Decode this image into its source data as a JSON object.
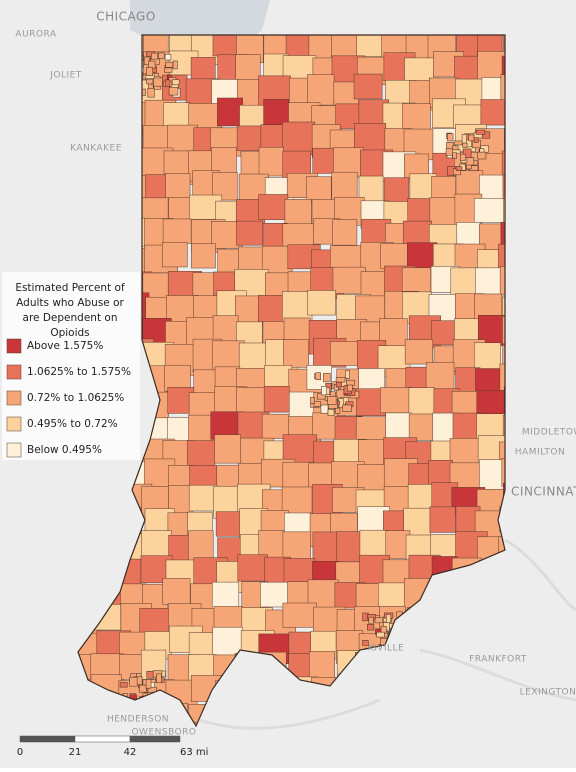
{
  "place_labels": [
    "CHICAGO",
    "AURORA",
    "JOLIET",
    "KANKAKEE",
    "MIDDLETOWN",
    "HAMILTON",
    "CINCINNATI",
    "FRANKFORT",
    "LEXINGTON",
    "ISVILLE",
    "HENDERSON",
    "OWENSBORO"
  ],
  "legend": {
    "title": "Estimated Percent of Adults who Abuse or are Dependent on Opioids",
    "items": [
      {
        "label": "Above 1.575%",
        "color": "#c8363a"
      },
      {
        "label": "1.0625% to 1.575%",
        "color": "#e8735b"
      },
      {
        "label": "0.72% to 1.0625%",
        "color": "#f6a676"
      },
      {
        "label": "0.495% to 0.72%",
        "color": "#fcd39d"
      },
      {
        "label": "Below 0.495%",
        "color": "#fef0d9"
      }
    ]
  },
  "scale": {
    "labels": [
      "0",
      "21",
      "42",
      "63 mi"
    ]
  }
}
